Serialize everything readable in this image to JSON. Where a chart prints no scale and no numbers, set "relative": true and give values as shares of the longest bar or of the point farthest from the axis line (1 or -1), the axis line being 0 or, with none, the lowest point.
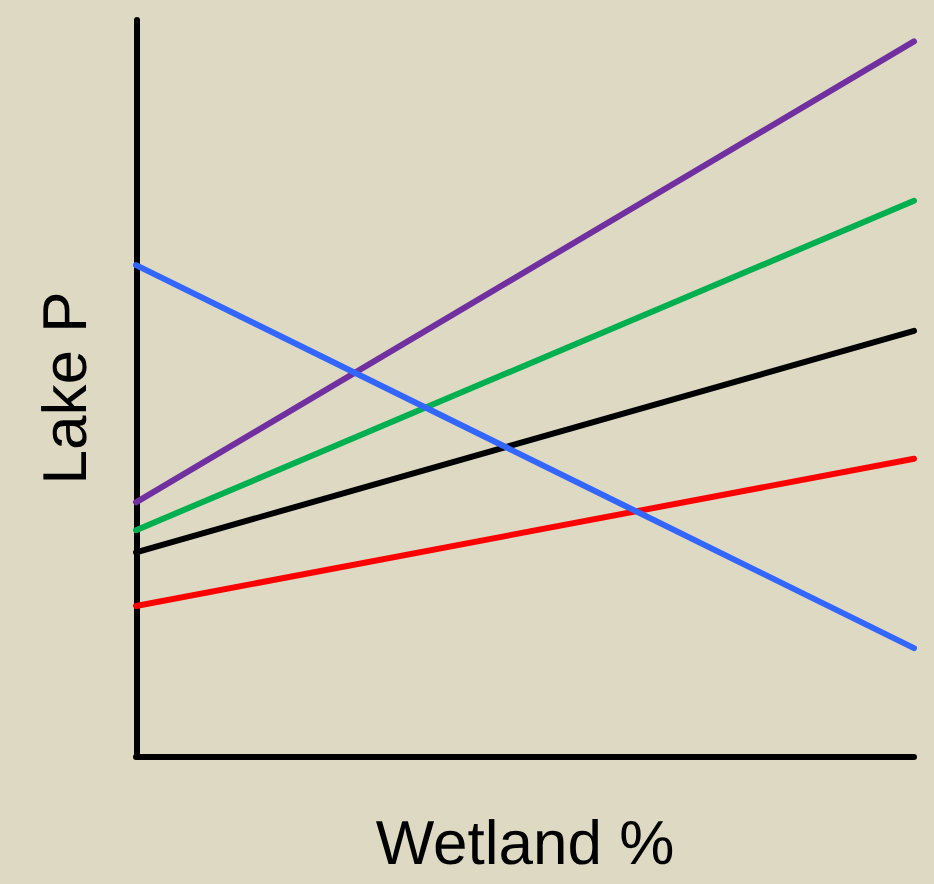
{
  "chart_data": {
    "type": "line",
    "relative": true,
    "xlabel": "Wetland %",
    "ylabel": "Lake P",
    "categories": [
      null,
      null
    ],
    "grid": false,
    "marker": "none",
    "line_style": "solid",
    "series": [
      {
        "color": "#7030a0",
        "values": [
          0.355,
          1
        ]
      },
      {
        "color": "#00b050",
        "values": [
          0.316,
          0.777
        ]
      },
      {
        "color": "#000000",
        "values": [
          0.285,
          0.595
        ]
      },
      {
        "color": "#ff0000",
        "values": [
          0.21,
          0.416
        ]
      },
      {
        "color": "#3366ff",
        "values": [
          0.687,
          0.151
        ]
      }
    ]
  }
}
